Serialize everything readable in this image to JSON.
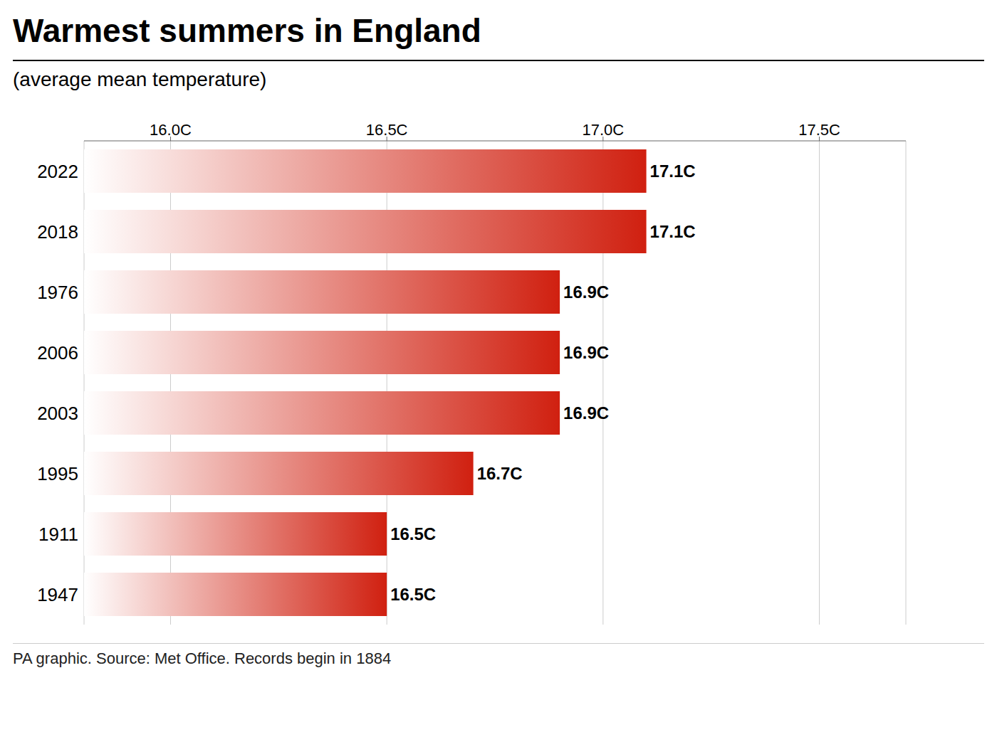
{
  "chart_data": {
    "type": "bar",
    "orientation": "horizontal",
    "title": "Warmest summers in England",
    "subtitle": "(average mean temperature)",
    "footnote": "PA graphic. Source: Met Office. Records begin in 1884",
    "categories": [
      "2022",
      "2018",
      "1976",
      "2006",
      "2003",
      "1995",
      "1911",
      "1947"
    ],
    "values": [
      17.1,
      17.1,
      16.9,
      16.9,
      16.9,
      16.7,
      16.5,
      16.5
    ],
    "value_labels": [
      "17.1C",
      "17.1C",
      "16.9C",
      "16.9C",
      "16.9C",
      "16.7C",
      "16.5C",
      "16.5C"
    ],
    "data_labels": true,
    "color": "#d02010",
    "xlim": [
      15.8,
      17.7
    ],
    "xticks": [
      {
        "value": 16.0,
        "label": "16.0C"
      },
      {
        "value": 16.5,
        "label": "16.5C"
      },
      {
        "value": 17.0,
        "label": "17.0C"
      },
      {
        "value": 17.5,
        "label": "17.5C"
      }
    ],
    "grid": true
  }
}
